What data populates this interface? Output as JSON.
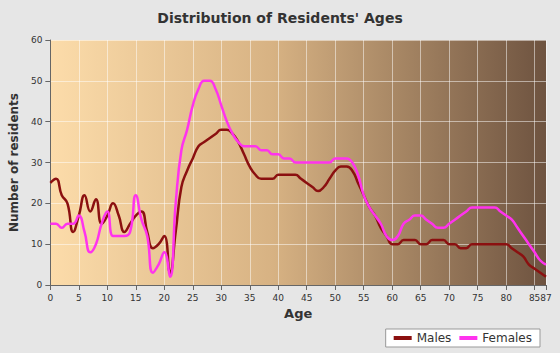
{
  "chart_data": {
    "type": "line",
    "title": "Distribution of Residents' Ages",
    "x_label": "Age",
    "y_label": "Number of residents",
    "x": [
      0,
      1,
      2,
      3,
      4,
      5,
      6,
      7,
      8,
      9,
      10,
      11,
      12,
      13,
      14,
      15,
      16,
      17,
      18,
      19,
      20,
      21,
      22,
      23,
      24,
      25,
      26,
      27,
      28,
      29,
      30,
      31,
      32,
      33,
      34,
      35,
      36,
      37,
      38,
      39,
      40,
      41,
      42,
      43,
      44,
      45,
      46,
      47,
      48,
      49,
      50,
      51,
      52,
      53,
      54,
      55,
      56,
      57,
      58,
      59,
      60,
      61,
      62,
      63,
      64,
      65,
      66,
      67,
      68,
      69,
      70,
      71,
      72,
      73,
      74,
      75,
      76,
      77,
      78,
      79,
      80,
      81,
      82,
      83,
      84,
      85,
      86,
      87
    ],
    "series": [
      {
        "name": "Males",
        "color": "#8b1010",
        "values": [
          25,
          26,
          22,
          20,
          13,
          17,
          22,
          18,
          21,
          15,
          17,
          20,
          17,
          13,
          15,
          17,
          18,
          13,
          9,
          10,
          12,
          3,
          13,
          24,
          28,
          31,
          34,
          35,
          36,
          37,
          38,
          38,
          37,
          35,
          32,
          29,
          27,
          26,
          26,
          26,
          27,
          27,
          27,
          27,
          26,
          25,
          24,
          23,
          24,
          26,
          28,
          29,
          29,
          28,
          25,
          22,
          19,
          17,
          14,
          12,
          10,
          10,
          11,
          11,
          11,
          10,
          10,
          11,
          11,
          11,
          10,
          10,
          9,
          9,
          10,
          10,
          10,
          10,
          10,
          10,
          10,
          9,
          8,
          7,
          5,
          4,
          3,
          2
        ]
      },
      {
        "name": "Females",
        "color": "#ff33ee",
        "values": [
          15,
          15,
          14,
          15,
          15,
          17,
          13,
          8,
          10,
          15,
          18,
          12,
          12,
          12,
          13,
          22,
          16,
          12,
          3,
          5,
          8,
          2,
          20,
          33,
          38,
          44,
          48,
          50,
          50,
          48,
          44,
          40,
          37,
          35,
          34,
          34,
          34,
          33,
          33,
          32,
          32,
          31,
          31,
          30,
          30,
          30,
          30,
          30,
          30,
          30,
          31,
          31,
          31,
          30,
          27,
          22,
          19,
          17,
          15,
          12,
          11,
          12,
          15,
          16,
          17,
          17,
          16,
          15,
          14,
          14,
          15,
          16,
          17,
          18,
          19,
          19,
          19,
          19,
          19,
          18,
          17,
          16,
          14,
          12,
          10,
          8,
          6,
          5
        ]
      }
    ],
    "xlim": [
      0,
      87
    ],
    "xticks": [
      0,
      5,
      10,
      15,
      20,
      25,
      30,
      35,
      40,
      45,
      50,
      55,
      60,
      65,
      70,
      75,
      80,
      85
    ],
    "ylim": [
      0,
      60
    ],
    "yticks": [
      0,
      10,
      20,
      30,
      40,
      50,
      60
    ],
    "grid": true,
    "legend": "bottom-right",
    "line_style": "solid"
  }
}
